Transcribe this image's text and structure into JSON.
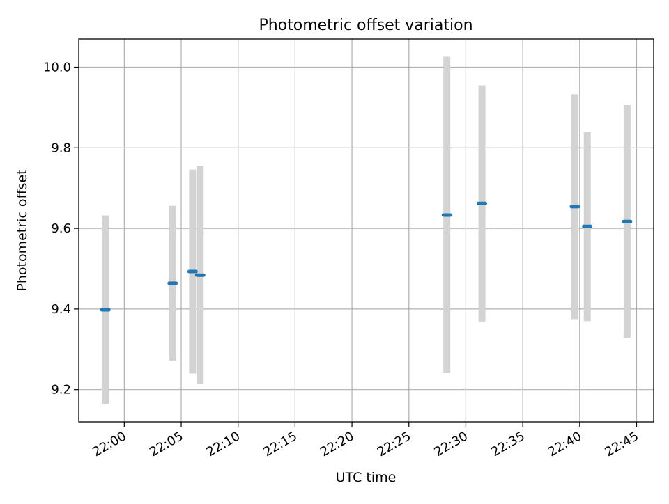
{
  "chart_data": {
    "type": "scatter",
    "title": "Photometric offset variation",
    "xlabel": "UTC time",
    "ylabel": "Photometric offset",
    "x_ticks": [
      "22:00",
      "22:05",
      "22:10",
      "22:15",
      "22:20",
      "22:25",
      "22:30",
      "22:35",
      "22:40",
      "22:45"
    ],
    "y_ticks": [
      "9.2",
      "9.4",
      "9.6",
      "9.8",
      "10.0"
    ],
    "xlim": [
      "21:56",
      "22:46:30"
    ],
    "ylim": [
      9.12,
      10.07
    ],
    "grid": true,
    "colors": {
      "point": "#1f77b4",
      "errorbar": "#d3d3d3",
      "grid": "#b0b0b0",
      "axis": "#000000"
    },
    "points": [
      {
        "x": "21:58:20",
        "y": 9.398,
        "ylow": 9.165,
        "yhigh": 9.632
      },
      {
        "x": "22:04:15",
        "y": 9.464,
        "ylow": 9.272,
        "yhigh": 9.656
      },
      {
        "x": "22:06:00",
        "y": 9.493,
        "ylow": 9.24,
        "yhigh": 9.746
      },
      {
        "x": "22:06:40",
        "y": 9.484,
        "ylow": 9.214,
        "yhigh": 9.754
      },
      {
        "x": "22:28:20",
        "y": 9.633,
        "ylow": 9.241,
        "yhigh": 10.026
      },
      {
        "x": "22:31:25",
        "y": 9.662,
        "ylow": 9.369,
        "yhigh": 9.955
      },
      {
        "x": "22:39:35",
        "y": 9.654,
        "ylow": 9.375,
        "yhigh": 9.933
      },
      {
        "x": "22:40:40",
        "y": 9.605,
        "ylow": 9.37,
        "yhigh": 9.84
      },
      {
        "x": "22:44:10",
        "y": 9.617,
        "ylow": 9.329,
        "yhigh": 9.906
      }
    ]
  }
}
